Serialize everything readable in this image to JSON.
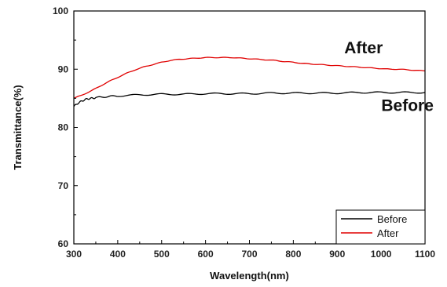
{
  "chart_data": {
    "type": "line",
    "title": "",
    "xlabel": "Wavelength(nm)",
    "ylabel": "Transmittance(%)",
    "xlim": [
      300,
      1100
    ],
    "ylim": [
      60,
      100
    ],
    "x_ticks": [
      300,
      400,
      500,
      600,
      700,
      800,
      900,
      1000,
      1100
    ],
    "y_ticks": [
      60,
      70,
      80,
      90,
      100
    ],
    "grid": false,
    "legend": "bottom-right",
    "annotations": [
      {
        "text": "After",
        "x": 960,
        "y": 92.7
      },
      {
        "text": "Before",
        "x": 1060,
        "y": 82.8
      }
    ],
    "series": [
      {
        "name": "Before",
        "color": "#000000",
        "x": [
          300,
          310,
          320,
          330,
          340,
          350,
          375,
          400,
          450,
          500,
          550,
          600,
          650,
          700,
          750,
          800,
          850,
          900,
          950,
          1000,
          1050,
          1100
        ],
        "y": [
          83.6,
          84.2,
          84.6,
          84.9,
          85.0,
          85.1,
          85.3,
          85.4,
          85.6,
          85.7,
          85.7,
          85.8,
          85.8,
          85.8,
          85.9,
          85.9,
          85.9,
          85.9,
          86.0,
          86.0,
          86.0,
          86.0
        ]
      },
      {
        "name": "After",
        "color": "#e00000",
        "x": [
          300,
          320,
          340,
          360,
          380,
          400,
          420,
          440,
          460,
          480,
          500,
          520,
          540,
          560,
          580,
          600,
          620,
          640,
          660,
          680,
          700,
          720,
          740,
          760,
          780,
          800,
          820,
          840,
          860,
          880,
          900,
          920,
          940,
          960,
          980,
          1000,
          1020,
          1040,
          1060,
          1080,
          1100
        ],
        "y": [
          85.0,
          85.6,
          86.3,
          87.1,
          87.9,
          88.6,
          89.3,
          89.9,
          90.4,
          90.8,
          91.2,
          91.5,
          91.7,
          91.8,
          91.9,
          92.0,
          92.0,
          92.0,
          92.0,
          91.9,
          91.8,
          91.7,
          91.6,
          91.5,
          91.3,
          91.2,
          91.0,
          90.9,
          90.8,
          90.7,
          90.6,
          90.5,
          90.4,
          90.3,
          90.2,
          90.1,
          90.0,
          90.0,
          89.9,
          89.8,
          89.7
        ]
      }
    ]
  }
}
